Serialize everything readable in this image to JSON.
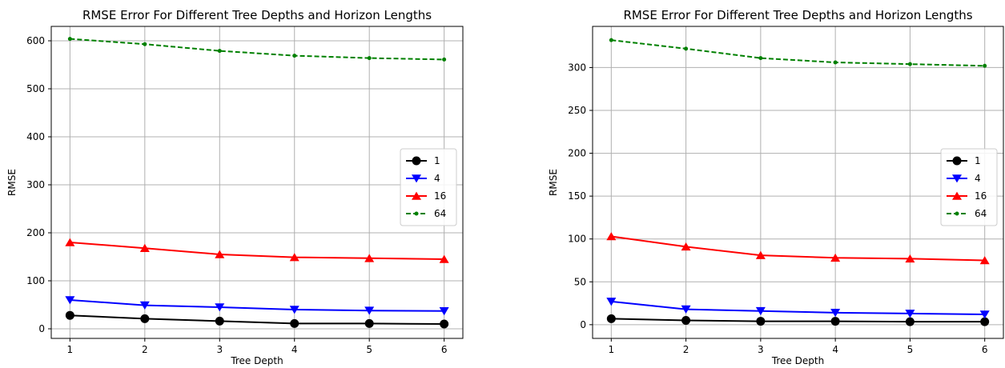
{
  "chart_data": [
    {
      "type": "line",
      "title": "RMSE Error For Different Tree Depths and Horizon Lengths",
      "xlabel": "Tree Depth",
      "ylabel": "RMSE",
      "x": [
        1,
        2,
        3,
        4,
        5,
        6
      ],
      "xlim": [
        0.75,
        6.25
      ],
      "ylim": [
        -20,
        630
      ],
      "yticks": [
        0,
        100,
        200,
        300,
        400,
        500,
        600
      ],
      "grid": true,
      "legend_position": "center-right",
      "series": [
        {
          "name": "1",
          "color": "#000000",
          "marker": "circle",
          "linestyle": "solid",
          "values": [
            28,
            21,
            16,
            11,
            11,
            10
          ]
        },
        {
          "name": "4",
          "color": "#0000ff",
          "marker": "triangle-down",
          "linestyle": "solid",
          "values": [
            60,
            49,
            45,
            40,
            38,
            37
          ]
        },
        {
          "name": "16",
          "color": "#ff0000",
          "marker": "triangle-up",
          "linestyle": "solid",
          "values": [
            180,
            168,
            155,
            149,
            147,
            145
          ]
        },
        {
          "name": "64",
          "color": "#008000",
          "marker": "point",
          "linestyle": "dashed",
          "values": [
            604,
            593,
            579,
            569,
            564,
            561
          ]
        }
      ]
    },
    {
      "type": "line",
      "title": "RMSE Error For Different Tree Depths and Horizon Lengths",
      "xlabel": "Tree Depth",
      "ylabel": "RMSE",
      "x": [
        1,
        2,
        3,
        4,
        5,
        6
      ],
      "xlim": [
        0.75,
        6.25
      ],
      "ylim": [
        -16,
        348
      ],
      "yticks": [
        0,
        50,
        100,
        150,
        200,
        250,
        300
      ],
      "grid": true,
      "legend_position": "center-right",
      "series": [
        {
          "name": "1",
          "color": "#000000",
          "marker": "circle",
          "linestyle": "solid",
          "values": [
            7,
            5,
            4,
            4,
            3.5,
            3.5
          ]
        },
        {
          "name": "4",
          "color": "#0000ff",
          "marker": "triangle-down",
          "linestyle": "solid",
          "values": [
            27,
            18,
            16,
            14,
            13,
            12
          ]
        },
        {
          "name": "16",
          "color": "#ff0000",
          "marker": "triangle-up",
          "linestyle": "solid",
          "values": [
            103,
            91,
            81,
            78,
            77,
            75
          ]
        },
        {
          "name": "64",
          "color": "#008000",
          "marker": "point",
          "linestyle": "dashed",
          "values": [
            332,
            322,
            311,
            306,
            304,
            302
          ]
        }
      ]
    }
  ]
}
